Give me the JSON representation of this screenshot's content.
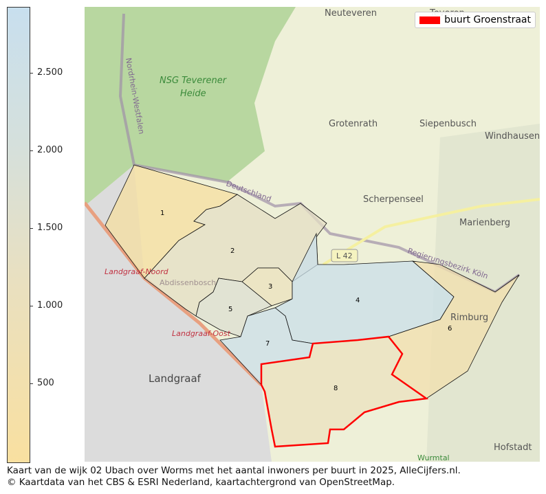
{
  "colorbar": {
    "ticks": [
      "500",
      "1.000",
      "1.500",
      "2.000",
      "2.500"
    ],
    "range": [
      0,
      2950
    ],
    "colors": [
      "#f9e0a0",
      "#c8dfee"
    ]
  },
  "legend": {
    "label": "buurt Groenstraat",
    "color": "#ff0000"
  },
  "map_labels": {
    "neuteveren": "Neuteveren",
    "teveren": "Teveren",
    "nsg1": "NSG Teverener",
    "nsg2": "Heide",
    "nrw": "Nordrhein-Westfalen",
    "grotenrath": "Grotenrath",
    "siepenbusch": "Siepenbusch",
    "windhausen": "Windhausen",
    "deutschland": "Deutschland",
    "scherpenseel": "Scherpenseel",
    "marienberg": "Marienberg",
    "l42": "L 42",
    "regbez": "Regierungsbezirk Köln",
    "rimburg": "Rimburg",
    "landgraaf": "Landgraaf",
    "hofstadt": "Hofstadt",
    "wurmtal": "Wurmtal",
    "lgnoord": "Landgraaf-Noord",
    "abdissenbosch": "Abdissenbosch",
    "lgoost": "Landgraaf-Oost"
  },
  "neighbourhoods": [
    {
      "label": "1",
      "color": "#f5dfa0"
    },
    {
      "label": "2",
      "color": "#e4dfc4"
    },
    {
      "label": "3",
      "color": "#ebe1bd"
    },
    {
      "label": "4",
      "color": "#c9dfe9"
    },
    {
      "label": "5",
      "color": "#dcdfd2"
    },
    {
      "label": "6",
      "color": "#f2dfae"
    },
    {
      "label": "7",
      "color": "#cbdfea"
    },
    {
      "label": "8",
      "color": "#ebe1bf"
    }
  ],
  "highlighted": "8",
  "caption": {
    "line1": "Kaart van de wijk 02 Ubach over Worms met het aantal inwoners per buurt in 2025, AlleCijfers.nl.",
    "line2": "© Kaartdata van het CBS & ESRI Nederland, kaartachtergrond van OpenStreetMap."
  }
}
